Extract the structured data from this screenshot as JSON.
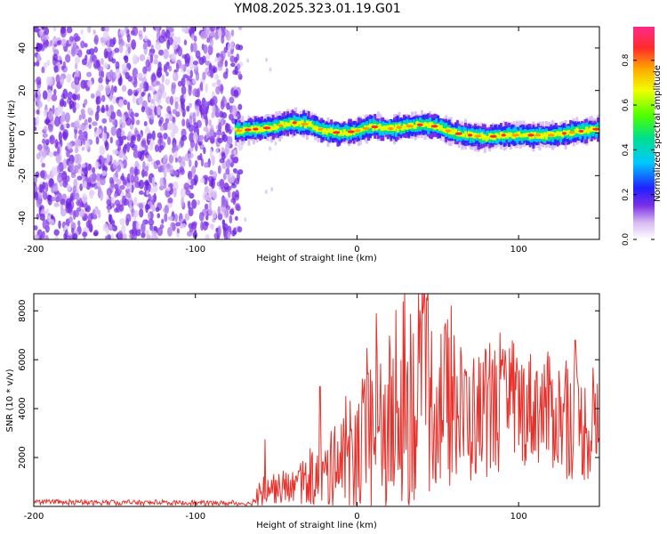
{
  "title": "YM08.2025.323.01.19.G01",
  "chart_data": [
    {
      "type": "heatmap",
      "xlabel": "Height of straight line (km)",
      "ylabel": "Frequency (Hz)",
      "xlim": [
        -200,
        150
      ],
      "ylim": [
        -50,
        50
      ],
      "xticks": [
        -200,
        -100,
        0,
        100
      ],
      "yticks": [
        -40,
        -20,
        0,
        20,
        40
      ],
      "noise_region_x": [
        -200,
        -70
      ],
      "signal_track": {
        "x": [
          -75,
          -60,
          -50,
          -40,
          -30,
          -20,
          -10,
          0,
          10,
          20,
          30,
          40,
          50,
          60,
          70,
          80,
          90,
          100,
          110,
          120,
          130,
          140,
          150
        ],
        "freq": [
          1,
          2,
          3,
          5,
          4,
          1,
          0,
          1,
          3,
          2,
          3,
          4,
          3,
          0,
          -1,
          -2,
          -1,
          -1,
          -1,
          -1,
          0,
          1,
          2
        ]
      },
      "colorbar": {
        "label": "Normalized spectral amplitude",
        "ticks": [
          0.0,
          0.2,
          0.4,
          0.6,
          0.8
        ],
        "range": [
          0,
          0.95
        ]
      }
    },
    {
      "type": "line",
      "xlabel": "Height of straight line (km)",
      "ylabel": "SNR (10 * v/v)",
      "xlim": [
        -200,
        150
      ],
      "ylim": [
        0,
        8700
      ],
      "xticks": [
        -200,
        -100,
        0,
        100
      ],
      "yticks": [
        2000,
        4000,
        6000,
        8000
      ],
      "color": "#e8312b",
      "envelope": {
        "x": [
          -200,
          -140,
          -80,
          -65,
          -60,
          -55,
          -50,
          -40,
          -30,
          -20,
          -10,
          0,
          10,
          20,
          30,
          40,
          50,
          60,
          70,
          80,
          90,
          100,
          110,
          120,
          130,
          140,
          150
        ],
        "base": [
          150,
          150,
          130,
          120,
          500,
          900,
          700,
          800,
          1000,
          1300,
          1700,
          2200,
          2800,
          3300,
          3800,
          4200,
          4300,
          3900,
          3600,
          3800,
          3900,
          4000,
          4100,
          3900,
          3500,
          3200,
          3000
        ],
        "spread": [
          100,
          100,
          100,
          80,
          500,
          900,
          600,
          700,
          1000,
          1400,
          2000,
          2600,
          3400,
          3800,
          4000,
          4000,
          3600,
          3200,
          2800,
          2600,
          2600,
          2400,
          2400,
          2400,
          2400,
          2200,
          2200
        ],
        "peaks": [
          {
            "x": -57,
            "v": 2750
          },
          {
            "x": -23,
            "v": 4900
          },
          {
            "x": 12,
            "v": 7900
          },
          {
            "x": 38,
            "v": 8700
          },
          {
            "x": 43,
            "v": 8500
          },
          {
            "x": 60,
            "v": 7000
          },
          {
            "x": 135,
            "v": 6800
          }
        ]
      }
    }
  ]
}
